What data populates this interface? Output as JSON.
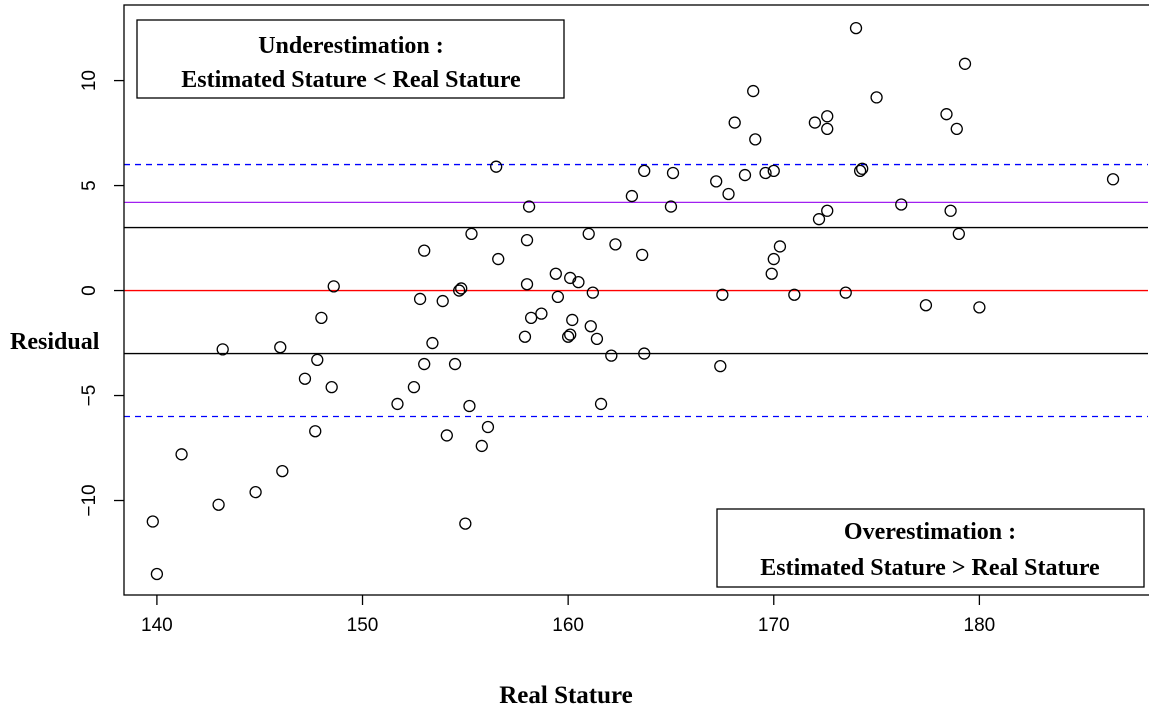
{
  "chart_data": {
    "type": "scatter",
    "title": "",
    "xlabel": "Real Stature",
    "ylabel": "Residual",
    "xlim": [
      138.4,
      188.2
    ],
    "ylim": [
      -14.5,
      13.6
    ],
    "x_ticks": [
      140,
      150,
      160,
      170,
      180
    ],
    "y_ticks": [
      -10,
      -5,
      0,
      5,
      10
    ],
    "grid": false,
    "annotations": {
      "under_line1": "Underestimation :",
      "under_line2": "Estimated Stature < Real Stature",
      "over_line1": "Overestimation :",
      "over_line2": "Estimated Stature > Real Stature"
    },
    "hlines": [
      {
        "y": 6,
        "color": "#0000ff",
        "style": "dashed"
      },
      {
        "y": 4.2,
        "color": "#a020f0",
        "style": "solid"
      },
      {
        "y": 3,
        "color": "#000000",
        "style": "solid"
      },
      {
        "y": 0,
        "color": "#ff0000",
        "style": "solid"
      },
      {
        "y": -3,
        "color": "#000000",
        "style": "solid"
      },
      {
        "y": -6,
        "color": "#0000ff",
        "style": "dashed"
      }
    ],
    "points": [
      [
        139.8,
        -11.0
      ],
      [
        140.0,
        -13.5
      ],
      [
        141.2,
        -7.8
      ],
      [
        143.0,
        -10.2
      ],
      [
        143.2,
        -2.8
      ],
      [
        144.8,
        -9.6
      ],
      [
        146.0,
        -2.7
      ],
      [
        146.1,
        -8.6
      ],
      [
        147.2,
        -4.2
      ],
      [
        147.7,
        -6.7
      ],
      [
        147.8,
        -3.3
      ],
      [
        148.0,
        -1.3
      ],
      [
        148.5,
        -4.6
      ],
      [
        148.6,
        0.2
      ],
      [
        151.7,
        -5.4
      ],
      [
        152.5,
        -4.6
      ],
      [
        152.8,
        -0.4
      ],
      [
        153.0,
        -3.5
      ],
      [
        153.0,
        1.9
      ],
      [
        153.4,
        -2.5
      ],
      [
        153.9,
        -0.5
      ],
      [
        154.1,
        -6.9
      ],
      [
        154.5,
        -3.5
      ],
      [
        154.7,
        0.0
      ],
      [
        154.8,
        0.1
      ],
      [
        155.0,
        -11.1
      ],
      [
        155.2,
        -5.5
      ],
      [
        155.3,
        2.7
      ],
      [
        155.8,
        -7.4
      ],
      [
        156.1,
        -6.5
      ],
      [
        156.5,
        5.9
      ],
      [
        156.6,
        1.5
      ],
      [
        157.9,
        -2.2
      ],
      [
        158.0,
        2.4
      ],
      [
        158.0,
        0.3
      ],
      [
        158.1,
        4.0
      ],
      [
        158.2,
        -1.3
      ],
      [
        158.7,
        -1.1
      ],
      [
        159.4,
        0.8
      ],
      [
        159.5,
        -0.3
      ],
      [
        160.0,
        -2.2
      ],
      [
        160.1,
        -2.1
      ],
      [
        160.1,
        0.6
      ],
      [
        160.2,
        -1.4
      ],
      [
        160.5,
        0.4
      ],
      [
        161.0,
        2.7
      ],
      [
        161.1,
        -1.7
      ],
      [
        161.2,
        -0.1
      ],
      [
        161.4,
        -2.3
      ],
      [
        161.6,
        -5.4
      ],
      [
        162.1,
        -3.1
      ],
      [
        162.3,
        2.2
      ],
      [
        163.1,
        4.5
      ],
      [
        163.6,
        1.7
      ],
      [
        163.7,
        -3.0
      ],
      [
        163.7,
        5.7
      ],
      [
        165.0,
        4.0
      ],
      [
        165.1,
        5.6
      ],
      [
        167.2,
        5.2
      ],
      [
        167.4,
        -3.6
      ],
      [
        167.5,
        -0.2
      ],
      [
        167.8,
        4.6
      ],
      [
        168.1,
        8.0
      ],
      [
        168.6,
        5.5
      ],
      [
        169.0,
        9.5
      ],
      [
        169.1,
        7.2
      ],
      [
        169.6,
        5.6
      ],
      [
        169.9,
        0.8
      ],
      [
        170.0,
        1.5
      ],
      [
        170.0,
        5.7
      ],
      [
        170.3,
        2.1
      ],
      [
        171.0,
        -0.2
      ],
      [
        172.0,
        8.0
      ],
      [
        172.2,
        3.4
      ],
      [
        172.6,
        3.8
      ],
      [
        172.6,
        7.7
      ],
      [
        172.6,
        8.3
      ],
      [
        173.5,
        -0.1
      ],
      [
        174.0,
        12.5
      ],
      [
        174.2,
        5.7
      ],
      [
        174.3,
        5.8
      ],
      [
        175.0,
        9.2
      ],
      [
        176.2,
        4.1
      ],
      [
        177.4,
        -0.7
      ],
      [
        178.4,
        8.4
      ],
      [
        178.6,
        3.8
      ],
      [
        178.9,
        7.7
      ],
      [
        179.0,
        2.7
      ],
      [
        179.3,
        10.8
      ],
      [
        180.0,
        -0.8
      ],
      [
        186.5,
        5.3
      ]
    ]
  }
}
